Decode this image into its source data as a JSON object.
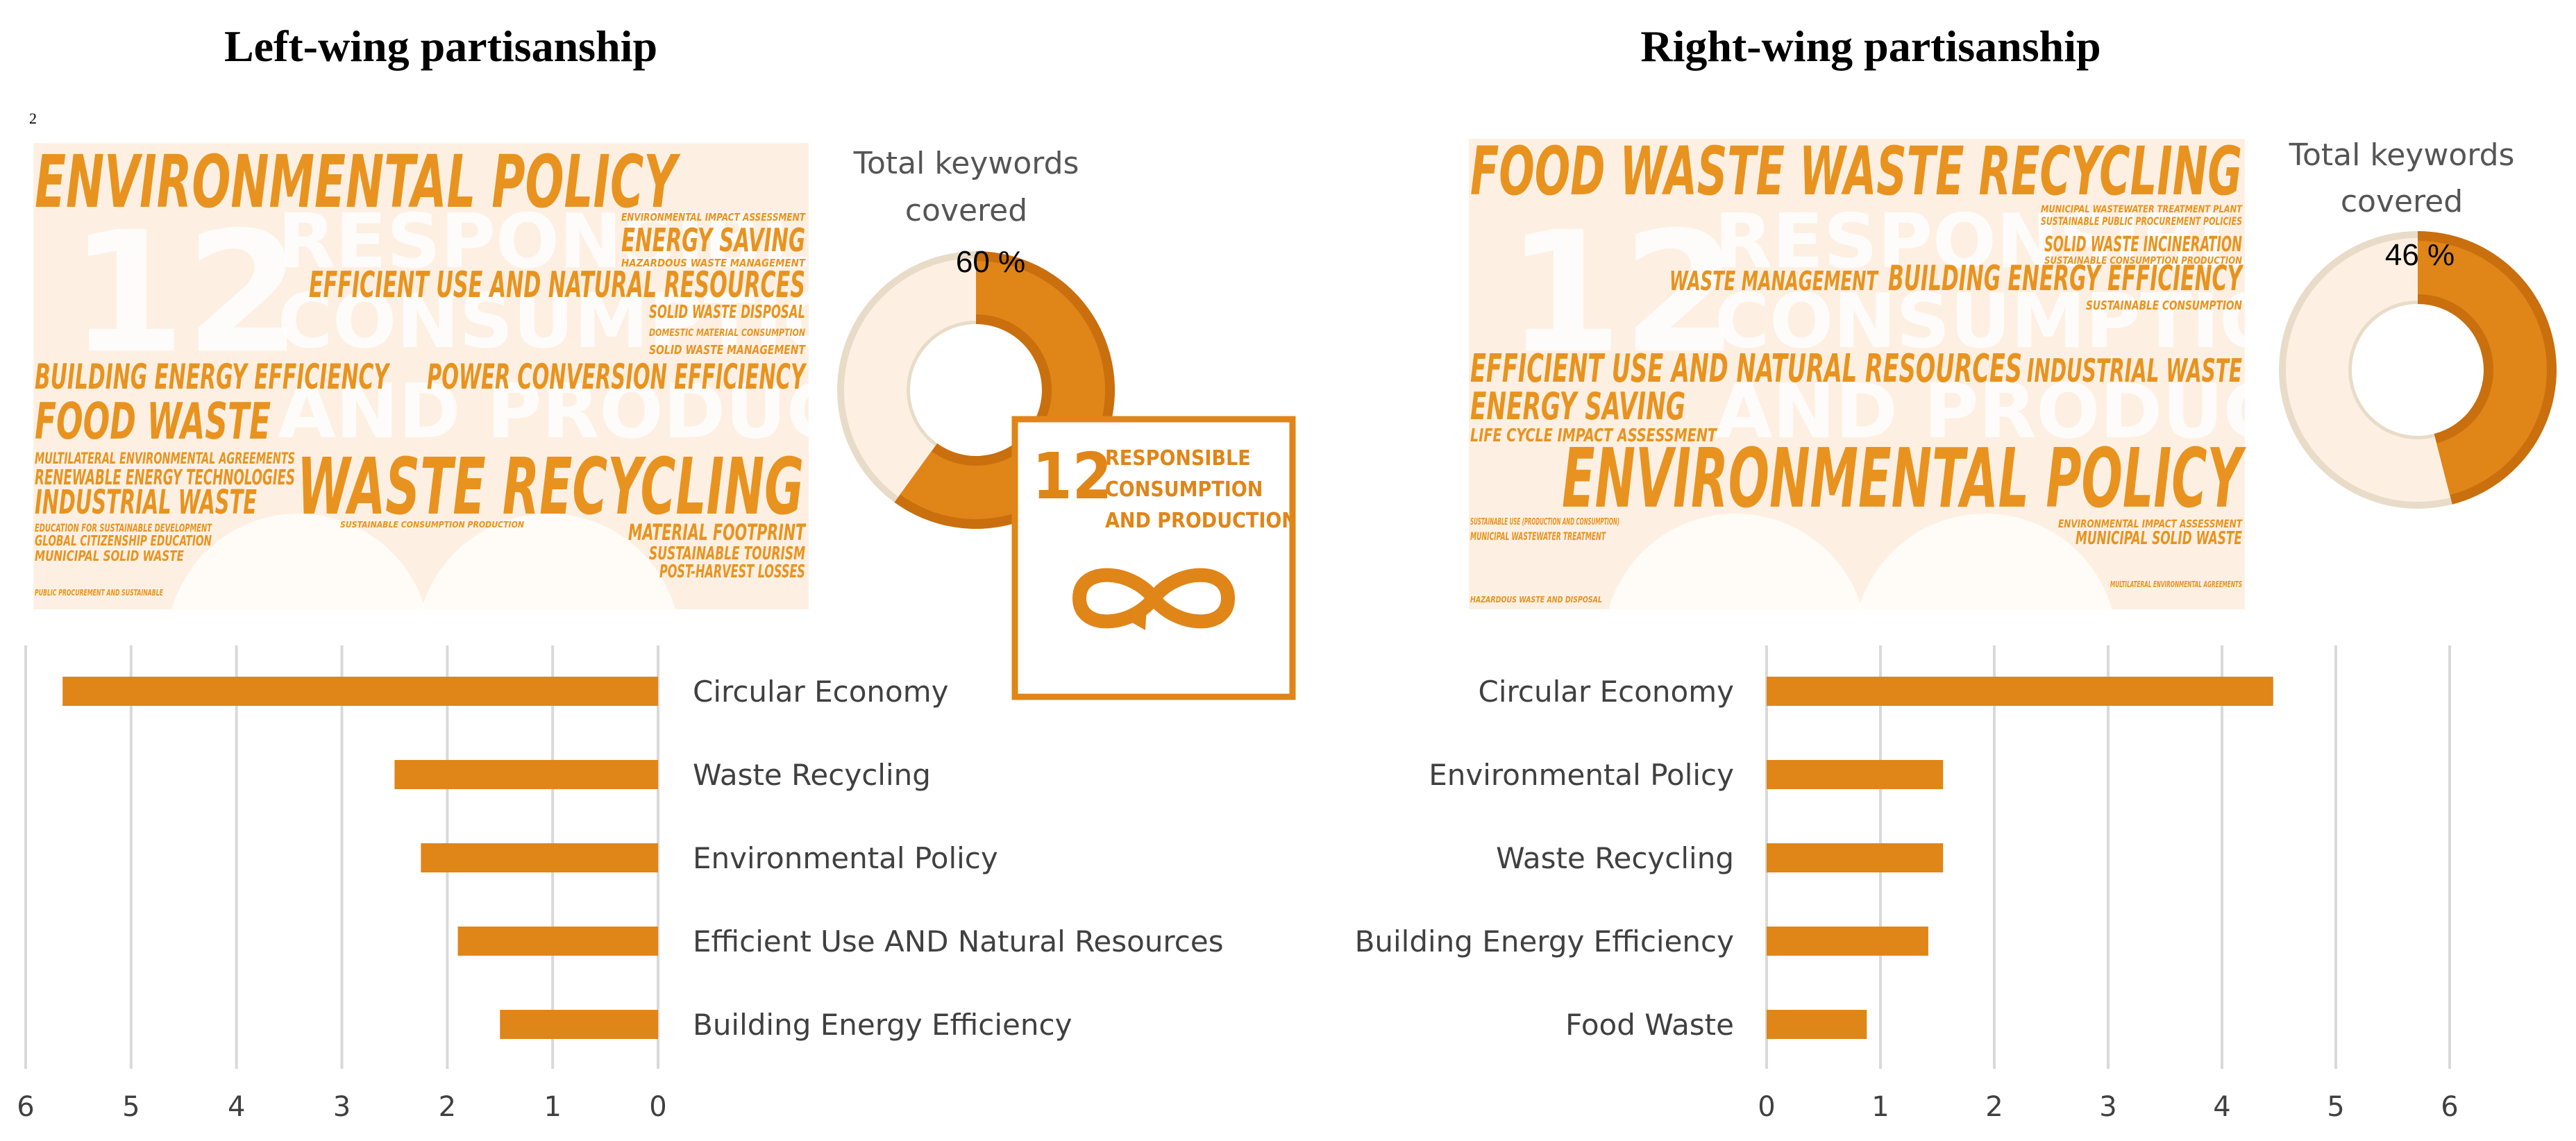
{
  "colors": {
    "accent": "#e08518",
    "ring_bg": "#e8dcc8",
    "ring_inner": "#fdf0e3",
    "grid": "#d9d9d9",
    "wordcloud_bg": "#fdf0e3"
  },
  "panels": [
    {
      "title": "Left-wing partisanship",
      "stray_mark": "2",
      "keywords": {
        "label_line1": "Total keywords",
        "label_line2": "covered",
        "percent_text": "60 %",
        "percent": 60
      },
      "wordcloud": {
        "ghost": [
          "12",
          "RESPONSIBLE",
          "CONSUMPTION",
          "AND PRODUCTION"
        ],
        "words": [
          "ENVIRONMENTAL POLICY",
          "ENERGY SAVING",
          "ENVIRONMENTAL IMPACT ASSESSMENT",
          "HAZARDOUS WASTE MANAGEMENT",
          "EFFICIENT USE AND NATURAL RESOURCES",
          "SOLID WASTE DISPOSAL",
          "DOMESTIC MATERIAL CONSUMPTION",
          "SOLID WASTE MANAGEMENT",
          "BUILDING ENERGY EFFICIENCY",
          "POWER CONVERSION EFFICIENCY",
          "FOOD WASTE",
          "MULTILATERAL ENVIRONMENTAL AGREEMENTS",
          "RENEWABLE ENERGY TECHNOLOGIES",
          "INDUSTRIAL WASTE",
          "WASTE RECYCLING",
          "EDUCATION FOR SUSTAINABLE DEVELOPMENT",
          "GLOBAL CITIZENSHIP EDUCATION",
          "MUNICIPAL SOLID WASTE",
          "SUSTAINABLE CONSUMPTION PRODUCTION",
          "MATERIAL FOOTPRINT",
          "SUSTAINABLE TOURISM",
          "POST-HARVEST LOSSES",
          "PUBLIC PROCUREMENT AND SUSTAINABLE"
        ]
      }
    },
    {
      "title": "Right-wing partisanship",
      "keywords": {
        "label_line1": "Total keywords",
        "label_line2": "covered",
        "percent_text": "46 %",
        "percent": 46
      },
      "wordcloud": {
        "ghost": [
          "12",
          "RESPONSIBLE",
          "CONSUMPTION",
          "AND PRODUCTION"
        ],
        "words": [
          "FOOD WASTE WASTE RECYCLING",
          "MUNICIPAL WASTEWATER TREATMENT PLANT",
          "SUSTAINABLE PUBLIC PROCUREMENT POLICIES",
          "SOLID WASTE INCINERATION",
          "SUSTAINABLE CONSUMPTION PRODUCTION",
          "WASTE MANAGEMENT",
          "BUILDING ENERGY EFFICIENCY",
          "SUSTAINABLE CONSUMPTION",
          "EFFICIENT USE AND NATURAL RESOURCES",
          "INDUSTRIAL WASTE",
          "ENERGY SAVING",
          "LIFE CYCLE IMPACT ASSESSMENT",
          "ENVIRONMENTAL POLICY",
          "SUSTAINABLE USE (PRODUCTION AND CONSUMPTION)",
          "MUNICIPAL WASTEWATER TREATMENT",
          "ENVIRONMENTAL IMPACT ASSESSMENT",
          "MUNICIPAL SOLID WASTE",
          "HAZARDOUS WASTE AND DISPOSAL",
          "MULTILATERAL ENVIRONMENTAL AGREEMENTS"
        ]
      }
    }
  ],
  "sdg_badge": {
    "number": "12",
    "line1": "RESPONSIBLE",
    "line2": "CONSUMPTION",
    "line3": "AND PRODUCTION"
  },
  "chart_data": [
    {
      "type": "bar",
      "orientation": "horizontal",
      "direction": "reversed",
      "categories": [
        "Circular Economy",
        "Waste Recycling",
        "Environmental Policy",
        "Efficient Use AND Natural Resources",
        "Building Energy Efficiency"
      ],
      "values": [
        5.65,
        2.5,
        2.25,
        1.9,
        1.5
      ],
      "xlim": [
        0,
        6
      ],
      "ticks": [
        "6",
        "5",
        "4",
        "3",
        "2",
        "1",
        "0"
      ],
      "grid": true
    },
    {
      "type": "bar",
      "orientation": "horizontal",
      "direction": "normal",
      "categories": [
        "Circular Economy",
        "Environmental Policy",
        "Waste Recycling",
        "Building Energy Efficiency",
        "Food Waste"
      ],
      "values": [
        4.45,
        1.55,
        1.55,
        1.42,
        0.88
      ],
      "xlim": [
        0,
        6
      ],
      "ticks": [
        "0",
        "1",
        "2",
        "3",
        "4",
        "5",
        "6"
      ],
      "grid": true
    }
  ]
}
